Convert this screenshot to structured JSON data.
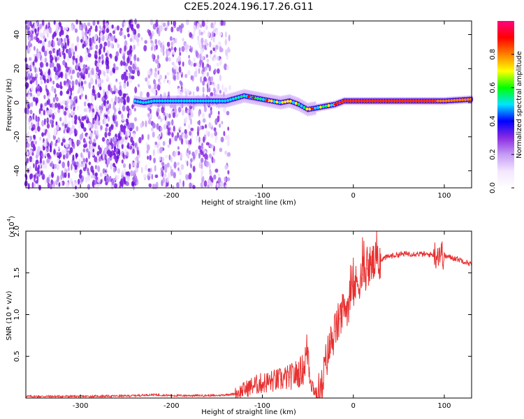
{
  "title": "C2E5.2024.196.17.26.G11",
  "chart_data": [
    {
      "type": "heatmap",
      "name": "spectrogram",
      "xlabel": "Height of straight line (km)",
      "ylabel": "Frequency (Hz)",
      "xlim": [
        -360,
        130
      ],
      "ylim": [
        -50,
        48
      ],
      "xticks": [
        {
          "value": -300,
          "label": "-300"
        },
        {
          "value": -200,
          "label": "-200"
        },
        {
          "value": -100,
          "label": "-100"
        },
        {
          "value": 0,
          "label": "0"
        },
        {
          "value": 100,
          "label": "100"
        }
      ],
      "yticks": [
        {
          "value": -40,
          "label": "-40"
        },
        {
          "value": -20,
          "label": "-20"
        },
        {
          "value": 0,
          "label": "0"
        },
        {
          "value": 20,
          "label": "20"
        },
        {
          "value": 40,
          "label": "40"
        }
      ],
      "signal_track": {
        "heights": [
          -240,
          -230,
          -220,
          -200,
          -180,
          -160,
          -140,
          -120,
          -100,
          -80,
          -70,
          -60,
          -50,
          -40,
          -30,
          -20,
          -10,
          0,
          20,
          40,
          60,
          80,
          100,
          130
        ],
        "frequencies": [
          1,
          0,
          1,
          1,
          1,
          1,
          1,
          4,
          2,
          0,
          1,
          -1,
          -4,
          -3,
          -2,
          -1,
          1,
          1,
          1,
          1,
          1,
          1,
          1,
          2
        ]
      },
      "noise_region_km": [
        -360,
        -145
      ],
      "colorbar": {
        "label": "Normalized spectral amplitude",
        "range": [
          0,
          1
        ],
        "ticks": [
          {
            "value": 0.0,
            "label": "0.0"
          },
          {
            "value": 0.2,
            "label": "0.2"
          },
          {
            "value": 0.4,
            "label": "0.4"
          },
          {
            "value": 0.6,
            "label": "0.6"
          },
          {
            "value": 0.8,
            "label": "0.8"
          }
        ],
        "colors": [
          "#ffffff",
          "#f3e6ff",
          "#c59bf5",
          "#8a2be2",
          "#0000ff",
          "#00e5ff",
          "#00ff00",
          "#ffff00",
          "#ff8000",
          "#ff0000",
          "#ff0080"
        ]
      }
    },
    {
      "type": "line",
      "name": "snr",
      "xlabel": "Height of straight line (km)",
      "ylabel": "SNR (10 * v/v)",
      "multiplier_label": "(x10",
      "multiplier_exp": "4",
      "multiplier_close": ")",
      "xlim": [
        -360,
        130
      ],
      "ylim": [
        0,
        2.0
      ],
      "xticks": [
        {
          "value": -300,
          "label": "-300"
        },
        {
          "value": -200,
          "label": "-200"
        },
        {
          "value": -100,
          "label": "-100"
        },
        {
          "value": 0,
          "label": "0"
        },
        {
          "value": 100,
          "label": "100"
        }
      ],
      "yticks": [
        {
          "value": 0.5,
          "label": "0.5"
        },
        {
          "value": 1.0,
          "label": "1.0"
        },
        {
          "value": 1.5,
          "label": "1.5"
        },
        {
          "value": 2.0,
          "label": "2.0"
        }
      ],
      "color": "#e83030",
      "series": [
        {
          "name": "SNR",
          "x": [
            -360,
            -300,
            -250,
            -220,
            -200,
            -150,
            -130,
            -120,
            -110,
            -100,
            -90,
            -80,
            -70,
            -60,
            -55,
            -50,
            -48,
            -45,
            -42,
            -40,
            -35,
            -30,
            -25,
            -20,
            -15,
            -10,
            -5,
            0,
            5,
            10,
            15,
            20,
            25,
            30,
            40,
            50,
            60,
            70,
            80,
            90,
            95,
            100,
            110,
            120,
            130
          ],
          "values": [
            0.02,
            0.02,
            0.025,
            0.04,
            0.03,
            0.03,
            0.05,
            0.1,
            0.15,
            0.18,
            0.2,
            0.22,
            0.25,
            0.3,
            0.35,
            0.6,
            0.3,
            0.15,
            0.08,
            0.05,
            0.1,
            0.45,
            0.65,
            0.8,
            0.95,
            1.05,
            1.15,
            1.3,
            1.4,
            1.48,
            1.55,
            1.6,
            1.62,
            1.66,
            1.7,
            1.72,
            1.73,
            1.73,
            1.72,
            1.72,
            1.75,
            1.7,
            1.68,
            1.65,
            1.6
          ]
        }
      ]
    }
  ]
}
